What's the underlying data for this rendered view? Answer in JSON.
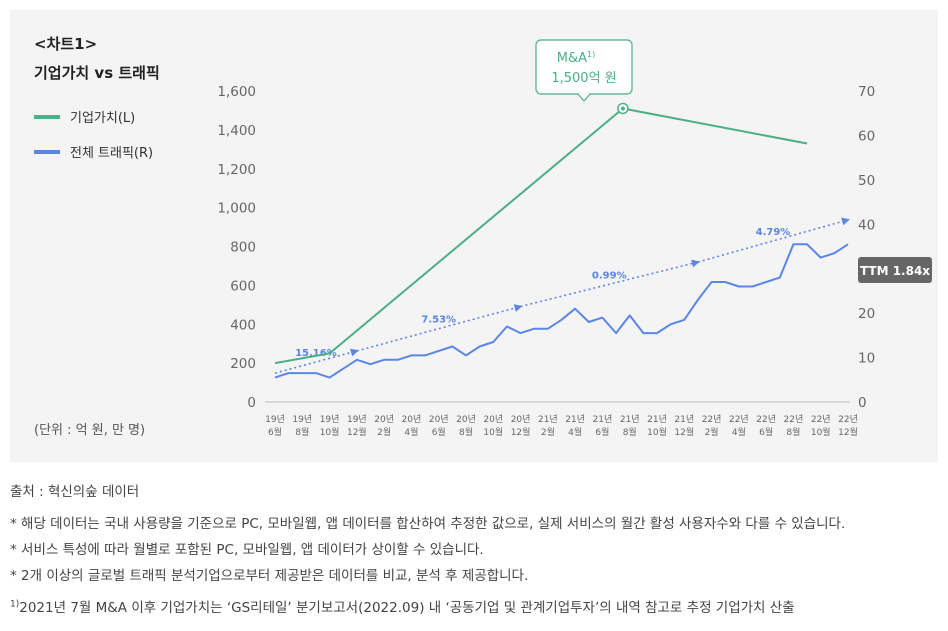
{
  "chart_title_line1": "<차트1>",
  "chart_title_line2": "기업가치 vs 트래픽",
  "unit_label": "(단위 : 억 원, 만 명)",
  "legend": [
    {
      "label": "기업가치(L)",
      "color": "#4caf85"
    },
    {
      "label": "전체 트래픽(R)",
      "color": "#5b86e5"
    }
  ],
  "callout": {
    "title_text": "M&A",
    "title_sup": "1)",
    "value": "1,500억 원"
  },
  "ttm_badge": "TTM 1.84x",
  "growth_labels": [
    "15.16%",
    "7.53%",
    "0.99%",
    "4.79%"
  ],
  "footnotes": {
    "source": "출처 : 혁신의숲 데이터",
    "note1": "* 해당 데이터는 국내 사용량을 기준으로 PC, 모바일웹, 앱 데이터를 합산하여 추정한 값으로, 실제 서비스의 월간 활성 사용자수와 다를 수 있습니다.",
    "note2": "* 서비스 특성에 따라 월별로 포함된 PC, 모바일웹, 앱 데이터가 상이할 수 있습니다.",
    "note3": "* 2개 이상의 글로벌 트래픽 분석기업으로부터 제공받은 데이터를 비교, 분석 후 제공합니다.",
    "note4_sup": "1)",
    "note4": "2021년 7월 M&A 이후 기업가치는 ‘GS리테일’ 분기보고서(2022.09) 내 ‘공동기업 및 관계기업투자’의 내역 참고로 추정 기업가치 산출"
  },
  "chart_data": {
    "type": "line",
    "x_index_range": [
      0,
      42
    ],
    "x_tick_indices": [
      0,
      2,
      4,
      6,
      8,
      10,
      12,
      14,
      16,
      18,
      20,
      22,
      24,
      26,
      28,
      30,
      32,
      34,
      36,
      38,
      40,
      42
    ],
    "x_tick_labels": [
      [
        "19년",
        "6월"
      ],
      [
        "19년",
        "8월"
      ],
      [
        "19년",
        "10월"
      ],
      [
        "19년",
        "12월"
      ],
      [
        "20년",
        "2월"
      ],
      [
        "20년",
        "4월"
      ],
      [
        "20년",
        "6월"
      ],
      [
        "20년",
        "8월"
      ],
      [
        "20년",
        "10월"
      ],
      [
        "20년",
        "12월"
      ],
      [
        "21년",
        "2월"
      ],
      [
        "21년",
        "4월"
      ],
      [
        "21년",
        "6월"
      ],
      [
        "21년",
        "8월"
      ],
      [
        "21년",
        "10월"
      ],
      [
        "21년",
        "12월"
      ],
      [
        "22년",
        "2월"
      ],
      [
        "22년",
        "4월"
      ],
      [
        "22년",
        "6월"
      ],
      [
        "22년",
        "8월"
      ],
      [
        "22년",
        "10월"
      ],
      [
        "22년",
        "12월"
      ]
    ],
    "y_left": {
      "min": 0,
      "max": 1600,
      "ticks": [
        0,
        200,
        400,
        600,
        800,
        1000,
        1200,
        1400,
        1600
      ],
      "tick_labels": [
        "0",
        "200",
        "400",
        "600",
        "800",
        "1,000",
        "1,200",
        "1,400",
        "1,600"
      ]
    },
    "y_right": {
      "min": 0,
      "max": 70,
      "ticks": [
        0,
        10,
        20,
        30,
        40,
        50,
        60,
        70
      ],
      "tick_labels": [
        "0",
        "10",
        "20",
        "30",
        "40",
        "50",
        "60",
        "70"
      ]
    },
    "series": [
      {
        "name": "기업가치(L)",
        "axis": "left",
        "color": "#4caf85",
        "x": [
          0,
          4,
          25.5,
          39
        ],
        "values": [
          200,
          250,
          1510,
          1330
        ]
      },
      {
        "name": "전체 트래픽(R)",
        "axis": "right",
        "color": "#5b86e5",
        "x": [
          0,
          1,
          2,
          3,
          4,
          5,
          6,
          7,
          8,
          9,
          10,
          11,
          12,
          13,
          14,
          15,
          16,
          17,
          18,
          19,
          20,
          21,
          22,
          23,
          24,
          25,
          26,
          27,
          28,
          29,
          30,
          31,
          32,
          33,
          34,
          35,
          36,
          37,
          38,
          39,
          40,
          41,
          42
        ],
        "values": [
          5.5,
          6.5,
          6.5,
          6.5,
          5.5,
          7.5,
          9.5,
          8.5,
          9.5,
          9.5,
          10.5,
          10.5,
          11.5,
          12.5,
          10.5,
          12.5,
          13.5,
          17,
          15.5,
          16.5,
          16.5,
          18.5,
          21,
          18,
          19,
          15.5,
          19.5,
          15.5,
          15.5,
          17.5,
          18.5,
          23,
          27,
          27,
          26,
          26,
          27,
          28,
          35.5,
          35.5,
          32.5,
          33.5,
          35.5
        ]
      }
    ],
    "trend_segments": [
      {
        "label": "15.16%",
        "x": [
          0,
          6
        ],
        "values": [
          6.5,
          11.5
        ]
      },
      {
        "label": "7.53%",
        "x": [
          6,
          18
        ],
        "values": [
          11.5,
          21.5
        ]
      },
      {
        "label": "0.99%",
        "x": [
          18,
          31
        ],
        "values": [
          21.5,
          31.5
        ]
      },
      {
        "label": "4.79%",
        "x": [
          31,
          42
        ],
        "values": [
          31.5,
          41
        ]
      }
    ],
    "annotation": {
      "series": "기업가치(L)",
      "x": 25.5,
      "value": 1510,
      "text": "M&A 1,500억 원"
    }
  }
}
